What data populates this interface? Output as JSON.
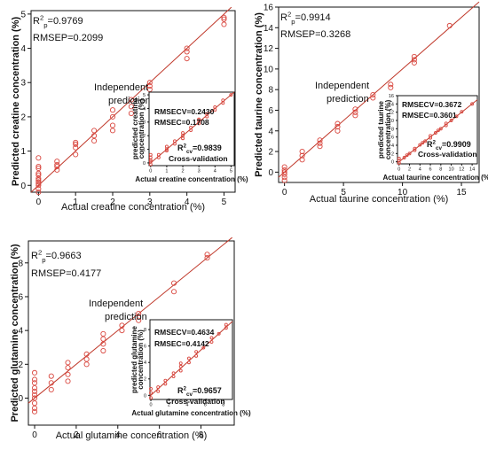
{
  "chart_data": [
    {
      "type": "scatter",
      "id": "creatine",
      "xlabel": "Actual creatine concentration (%)",
      "ylabel": "Predicted creatine concentration (%)",
      "xlim": [
        -0.2,
        5.3
      ],
      "ylim": [
        -0.2,
        5.1
      ],
      "xticks": [
        "0",
        "1",
        "2",
        "3",
        "4",
        "5"
      ],
      "xtick_values": [
        0,
        1,
        2,
        3,
        4,
        5
      ],
      "yticks": [
        "0",
        "1",
        "2",
        "3",
        "4",
        "5"
      ],
      "ytick_values": [
        0,
        1,
        2,
        3,
        4,
        5
      ],
      "stats": [
        "R²p=0.9769",
        "RMSEP=0.2099"
      ],
      "annotation": [
        "Independent",
        "prediction"
      ],
      "series": [
        {
          "x": [
            0,
            0,
            0,
            0,
            0,
            0,
            0,
            0,
            0,
            0,
            0,
            0,
            0.5,
            0.5,
            0.5,
            0.5,
            1,
            1,
            1,
            1,
            1.5,
            1.5,
            1.5,
            2,
            2,
            2,
            2,
            2.5,
            2.5,
            2.5,
            3,
            3,
            3,
            4,
            4,
            4,
            5,
            5,
            5
          ],
          "y": [
            -0.2,
            -0.1,
            0,
            0.05,
            0.1,
            0.15,
            0.2,
            0.3,
            0.35,
            0.5,
            0.55,
            0.8,
            0.45,
            0.55,
            0.6,
            0.7,
            0.9,
            1.1,
            1.2,
            1.25,
            1.3,
            1.45,
            1.6,
            1.6,
            1.75,
            2.0,
            2.2,
            2.1,
            2.3,
            2.5,
            2.8,
            2.9,
            3.0,
            3.7,
            3.9,
            4.0,
            4.7,
            4.85,
            4.9
          ]
        }
      ],
      "fit": [
        [
          -0.2,
          -0.2
        ],
        [
          5.2,
          5.2
        ]
      ],
      "inset": {
        "ylabel": [
          "predicted creatine",
          "concentration (%)"
        ],
        "xlabel": "Actual creatine concentration (%)",
        "xlim": [
          -0.1,
          5.2
        ],
        "ylim": [
          -0.2,
          5.2
        ],
        "xticks": [
          "0",
          "1",
          "2",
          "3",
          "4",
          "5"
        ],
        "xtick_values": [
          0,
          1,
          2,
          3,
          4,
          5
        ],
        "yticks": [
          "0",
          "1",
          "2",
          "3",
          "4",
          "5"
        ],
        "ytick_values": [
          0,
          1,
          2,
          3,
          4,
          5
        ],
        "stats": [
          "RMSECV=0.2430",
          "RMSEC=0.1708"
        ],
        "r2": "R²cv=0.9839",
        "label": "Cross-validation",
        "series": [
          {
            "x": [
              0,
              0,
              0,
              0,
              0,
              0.5,
              0.5,
              1,
              1,
              1,
              1.5,
              1.5,
              2,
              2,
              2,
              2.5,
              2.5,
              3,
              3,
              3,
              3.5,
              3.5,
              4,
              4,
              4.5,
              4.5,
              5
            ],
            "y": [
              -0.1,
              0.1,
              0.2,
              0.4,
              0.6,
              0.4,
              0.6,
              0.9,
              1.0,
              1.2,
              1.4,
              1.6,
              1.8,
              2.0,
              2.2,
              2.4,
              2.6,
              2.9,
              3.1,
              3.2,
              3.4,
              3.6,
              3.9,
              4.1,
              4.4,
              4.6,
              5.0
            ]
          }
        ],
        "fit": [
          [
            -0.1,
            -0.1
          ],
          [
            5.2,
            5.2
          ]
        ]
      }
    },
    {
      "type": "scatter",
      "id": "taurine",
      "xlabel": "Actual taurine concentration (%)",
      "ylabel": "Predicted taurine concentration (%)",
      "xlim": [
        -0.5,
        16.5
      ],
      "ylim": [
        -1,
        16
      ],
      "xticks": [
        "0",
        "5",
        "10",
        "15"
      ],
      "xtick_values": [
        0,
        5,
        10,
        15
      ],
      "yticks": [
        "0",
        "2",
        "4",
        "6",
        "8",
        "10",
        "12",
        "14",
        "16"
      ],
      "ytick_values": [
        0,
        2,
        4,
        6,
        8,
        10,
        12,
        14,
        16
      ],
      "stats": [
        "R²p=0.9914",
        "RMSEP=0.3268"
      ],
      "annotation": [
        "Independent",
        "prediction"
      ],
      "series": [
        {
          "x": [
            0,
            0,
            0,
            0,
            0,
            0,
            1.5,
            1.5,
            1.5,
            3,
            3,
            3,
            4.5,
            4.5,
            4.5,
            6,
            6,
            6,
            7.5,
            7.5,
            9,
            9,
            11,
            11,
            11,
            14
          ],
          "y": [
            -0.8,
            -0.5,
            -0.2,
            0,
            0.2,
            0.5,
            1.2,
            1.6,
            2.0,
            2.5,
            2.8,
            3.1,
            4.0,
            4.4,
            4.7,
            5.5,
            5.8,
            6.1,
            7.2,
            7.5,
            8.2,
            8.5,
            10.6,
            10.9,
            11.2,
            14.2
          ]
        }
      ],
      "fit": [
        [
          -0.5,
          -0.5
        ],
        [
          16.5,
          16.5
        ]
      ],
      "inset": {
        "ylabel": [
          "predicted taurine",
          "concentration (%)"
        ],
        "xlabel": "Actual taurine concentration (%)",
        "xlim": [
          -0.3,
          15
        ],
        "ylim": [
          -0.5,
          16
        ],
        "xticks": [
          "0",
          "2",
          "4",
          "6",
          "8",
          "10",
          "12",
          "14"
        ],
        "xtick_values": [
          0,
          2,
          4,
          6,
          8,
          10,
          12,
          14
        ],
        "yticks": [
          "0",
          "2",
          "4",
          "6",
          "8",
          "10",
          "12",
          "14",
          "16"
        ],
        "ytick_values": [
          0,
          2,
          4,
          6,
          8,
          10,
          12,
          14,
          16
        ],
        "stats": [
          "RMSECV=0.3672",
          "RMSEC=0.3601"
        ],
        "r2": "R²cv=0.9909",
        "label": "Cross-validation",
        "series": [
          {
            "x": [
              0,
              0,
              0,
              1,
              1.5,
              2,
              3,
              3,
              4,
              4.5,
              5,
              6,
              6,
              7,
              7.5,
              8,
              9,
              9,
              10,
              11,
              12,
              14
            ],
            "y": [
              -0.3,
              0.3,
              0.8,
              1.0,
              1.6,
              2.0,
              2.8,
              3.2,
              4.1,
              4.6,
              5.0,
              5.8,
              6.3,
              7.0,
              7.6,
              8.0,
              8.8,
              9.3,
              10.0,
              11.0,
              12.1,
              14.0
            ]
          }
        ],
        "fit": [
          [
            -0.3,
            -0.3
          ],
          [
            15,
            15
          ]
        ]
      }
    },
    {
      "type": "scatter",
      "id": "glutamine",
      "xlabel": "Actual glutamine concentration (%)",
      "ylabel": "Predicted glutamine concentration (%)",
      "xlim": [
        -0.3,
        9.6
      ],
      "ylim": [
        -1.6,
        9.3
      ],
      "xticks": [
        "0",
        "2",
        "4",
        "6",
        "8"
      ],
      "xtick_values": [
        0,
        2,
        4,
        6,
        8
      ],
      "yticks": [
        "0",
        "2",
        "4",
        "6",
        "8"
      ],
      "ytick_values": [
        0,
        2,
        4,
        6,
        8
      ],
      "stats": [
        "R²p=0.9663",
        "RMSEP=0.4177"
      ],
      "annotation": [
        "Independent",
        "prediction"
      ],
      "series": [
        {
          "x": [
            0,
            0,
            0,
            0,
            0,
            0,
            0,
            0,
            0,
            0,
            0.8,
            0.8,
            0.8,
            1.6,
            1.6,
            1.6,
            1.6,
            2.5,
            2.5,
            2.5,
            3.3,
            3.3,
            3.3,
            3.3,
            4.2,
            4.2,
            5,
            5,
            6.7,
            6.7,
            8.3,
            8.3
          ],
          "y": [
            -0.8,
            -0.6,
            -0.3,
            0,
            0.2,
            0.4,
            0.6,
            0.9,
            1.1,
            1.5,
            0.5,
            0.9,
            1.3,
            1.0,
            1.4,
            1.8,
            2.1,
            2.0,
            2.3,
            2.6,
            2.8,
            3.2,
            3.5,
            3.8,
            4.0,
            4.3,
            4.6,
            5.0,
            6.3,
            6.8,
            8.3,
            8.5
          ]
        }
      ],
      "fit": [
        [
          -0.3,
          -0.3
        ],
        [
          9.5,
          9.5
        ]
      ],
      "inset": {
        "ylabel": [
          "predicted glutamine",
          "concentration (%)"
        ],
        "xlabel": "Actual glutamine concentration (%)",
        "xlim": [
          -0.1,
          9
        ],
        "ylim": [
          -0.5,
          9.2
        ],
        "xticks": [
          "0",
          "2",
          "4",
          "6",
          "8"
        ],
        "xtick_values": [
          0,
          2,
          4,
          6,
          8
        ],
        "yticks": [
          "0",
          "2",
          "4",
          "6",
          "8"
        ],
        "ytick_values": [
          0,
          2,
          4,
          6,
          8
        ],
        "stats": [
          "RMSECV=0.4634",
          "RMSEC=0.4142"
        ],
        "r2": "R²cv=0.9657",
        "label": "Cross-validation",
        "series": [
          {
            "x": [
              0,
              0,
              0,
              0.8,
              0.8,
              1.6,
              1.6,
              2.5,
              2.5,
              3.3,
              3.3,
              3.3,
              4.2,
              4.2,
              5,
              5,
              5.8,
              6.7,
              6.7,
              7.5,
              8.3,
              8.3
            ],
            "y": [
              -0.3,
              0.3,
              0.8,
              0.5,
              1.0,
              1.4,
              1.8,
              2.3,
              2.7,
              3.0,
              3.5,
              3.9,
              4.0,
              4.5,
              4.8,
              5.3,
              5.8,
              6.5,
              7.0,
              7.5,
              8.2,
              8.6
            ]
          }
        ],
        "fit": [
          [
            -0.1,
            -0.1
          ],
          [
            9,
            9
          ]
        ]
      }
    }
  ]
}
